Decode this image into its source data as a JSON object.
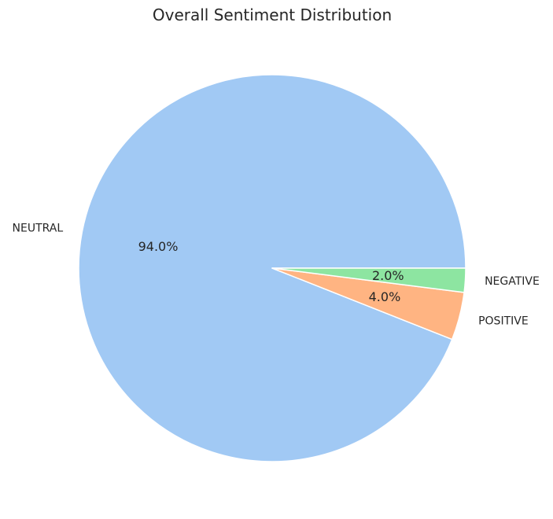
{
  "chart_data": {
    "type": "pie",
    "title": "Overall Sentiment Distribution",
    "slices": [
      {
        "label": "NEUTRAL",
        "value": 94.0,
        "pct_label": "94.0%",
        "color": "#a1c9f4"
      },
      {
        "label": "POSITIVE",
        "value": 4.0,
        "pct_label": "4.0%",
        "color": "#ffb482"
      },
      {
        "label": "NEGATIVE",
        "value": 2.0,
        "pct_label": "2.0%",
        "color": "#8de5a1"
      }
    ],
    "start_angle": 0,
    "direction": "counterclockwise",
    "slice_edge_color": "#ffffff",
    "legend": "none"
  }
}
